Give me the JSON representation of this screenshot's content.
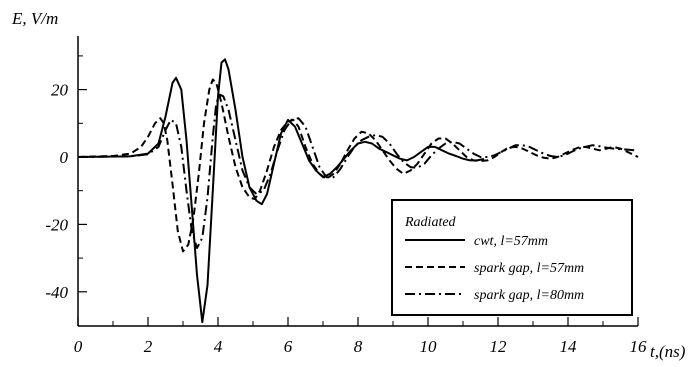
{
  "chart_data": {
    "type": "line",
    "title": "",
    "ylabel": "E, V/m",
    "xlabel": "t,(ns)",
    "xlim": [
      0,
      16
    ],
    "ylim": [
      -50,
      35
    ],
    "x_ticks": [
      0,
      2,
      4,
      6,
      8,
      10,
      12,
      14,
      16
    ],
    "y_ticks": [
      -40,
      -20,
      0,
      20
    ],
    "grid": false,
    "legend": {
      "title": "Radiated",
      "placement": "bottom-right"
    },
    "series": [
      {
        "name": "cwt, l=57mm",
        "style": "solid",
        "color": "#000000",
        "points": [
          [
            0,
            0
          ],
          [
            1.5,
            0.2
          ],
          [
            2.0,
            1.0
          ],
          [
            2.3,
            4
          ],
          [
            2.5,
            12
          ],
          [
            2.7,
            22
          ],
          [
            2.8,
            23.5
          ],
          [
            2.95,
            20
          ],
          [
            3.1,
            5
          ],
          [
            3.25,
            -15
          ],
          [
            3.4,
            -35
          ],
          [
            3.55,
            -49
          ],
          [
            3.7,
            -38
          ],
          [
            3.85,
            -10
          ],
          [
            4.0,
            18
          ],
          [
            4.1,
            28
          ],
          [
            4.2,
            29
          ],
          [
            4.3,
            26
          ],
          [
            4.5,
            14
          ],
          [
            4.7,
            0
          ],
          [
            4.9,
            -9
          ],
          [
            5.1,
            -13
          ],
          [
            5.25,
            -14
          ],
          [
            5.4,
            -11
          ],
          [
            5.6,
            -2
          ],
          [
            5.8,
            7
          ],
          [
            6.0,
            11
          ],
          [
            6.2,
            9
          ],
          [
            6.4,
            4
          ],
          [
            6.6,
            -1
          ],
          [
            6.8,
            -4
          ],
          [
            7.0,
            -6
          ],
          [
            7.2,
            -5
          ],
          [
            7.4,
            -3
          ],
          [
            7.6,
            -0.5
          ],
          [
            7.8,
            2
          ],
          [
            8.0,
            4
          ],
          [
            8.2,
            4.5
          ],
          [
            8.4,
            4
          ],
          [
            8.6,
            2.5
          ],
          [
            8.8,
            1.5
          ],
          [
            9.0,
            0.5
          ],
          [
            9.2,
            -0.5
          ],
          [
            9.4,
            -1
          ],
          [
            9.6,
            0
          ],
          [
            9.8,
            1.5
          ],
          [
            10.0,
            3
          ],
          [
            10.2,
            3
          ],
          [
            10.4,
            2
          ],
          [
            10.6,
            1
          ],
          [
            10.8,
            0.3
          ],
          [
            11.0,
            -0.5
          ],
          [
            11.2,
            -1
          ],
          [
            11.4,
            -1
          ],
          [
            11.6,
            -0.6
          ]
        ]
      },
      {
        "name": "spark gap, l=57mm",
        "style": "dashed",
        "color": "#000000",
        "points": [
          [
            0,
            0
          ],
          [
            1.0,
            0.3
          ],
          [
            1.5,
            1
          ],
          [
            1.8,
            3
          ],
          [
            2.0,
            6
          ],
          [
            2.2,
            10
          ],
          [
            2.35,
            11.5
          ],
          [
            2.45,
            10
          ],
          [
            2.55,
            5
          ],
          [
            2.7,
            -8
          ],
          [
            2.85,
            -22
          ],
          [
            3.0,
            -28
          ],
          [
            3.15,
            -26
          ],
          [
            3.3,
            -18
          ],
          [
            3.45,
            -5
          ],
          [
            3.6,
            10
          ],
          [
            3.75,
            20
          ],
          [
            3.85,
            23
          ],
          [
            3.95,
            22
          ],
          [
            4.1,
            16
          ],
          [
            4.3,
            6
          ],
          [
            4.5,
            -3
          ],
          [
            4.7,
            -9
          ],
          [
            4.9,
            -12
          ],
          [
            5.05,
            -12.5
          ],
          [
            5.2,
            -10
          ],
          [
            5.4,
            -4
          ],
          [
            5.6,
            3
          ],
          [
            5.8,
            8
          ],
          [
            6.0,
            10.5
          ],
          [
            6.15,
            11
          ],
          [
            6.3,
            9
          ],
          [
            6.5,
            3
          ],
          [
            6.7,
            -2
          ],
          [
            6.9,
            -5
          ],
          [
            7.1,
            -6.5
          ],
          [
            7.3,
            -5
          ],
          [
            7.5,
            -2
          ],
          [
            7.7,
            2
          ],
          [
            7.9,
            5.5
          ],
          [
            8.1,
            7.5
          ],
          [
            8.3,
            7
          ],
          [
            8.5,
            5
          ],
          [
            8.7,
            2
          ],
          [
            8.9,
            -1
          ],
          [
            9.1,
            -3.5
          ],
          [
            9.3,
            -5
          ],
          [
            9.5,
            -4
          ],
          [
            9.7,
            -2
          ],
          [
            9.9,
            1
          ],
          [
            10.1,
            4
          ],
          [
            10.3,
            5.5
          ],
          [
            10.5,
            5.5
          ],
          [
            10.7,
            4
          ],
          [
            10.9,
            2
          ],
          [
            11.1,
            0
          ],
          [
            11.3,
            -1
          ],
          [
            11.5,
            -1.2
          ],
          [
            11.7,
            -1
          ],
          [
            11.9,
            0
          ],
          [
            12.1,
            1.5
          ],
          [
            12.3,
            2.8
          ],
          [
            12.5,
            3
          ],
          [
            12.7,
            2.5
          ],
          [
            12.9,
            1.5
          ],
          [
            13.1,
            0.5
          ],
          [
            13.3,
            -0.2
          ],
          [
            13.5,
            -0.5
          ],
          [
            13.7,
            0
          ],
          [
            13.9,
            1
          ],
          [
            14.1,
            2
          ],
          [
            14.3,
            2.8
          ],
          [
            14.5,
            3
          ],
          [
            14.7,
            2.5
          ],
          [
            14.9,
            2
          ],
          [
            15.1,
            2.5
          ],
          [
            15.3,
            3
          ],
          [
            15.5,
            2.5
          ],
          [
            15.7,
            1.5
          ],
          [
            15.9,
            0.5
          ],
          [
            16.0,
            0
          ]
        ]
      },
      {
        "name": "spark gap, l=80mm",
        "style": "dash-dot",
        "color": "#000000",
        "points": [
          [
            0,
            0
          ],
          [
            1.5,
            0.2
          ],
          [
            2.0,
            0.8
          ],
          [
            2.3,
            3
          ],
          [
            2.5,
            8
          ],
          [
            2.65,
            11
          ],
          [
            2.8,
            10
          ],
          [
            2.95,
            3
          ],
          [
            3.1,
            -10
          ],
          [
            3.25,
            -22
          ],
          [
            3.4,
            -27
          ],
          [
            3.55,
            -24
          ],
          [
            3.7,
            -12
          ],
          [
            3.85,
            6
          ],
          [
            3.95,
            16
          ],
          [
            4.05,
            18.5
          ],
          [
            4.15,
            18
          ],
          [
            4.3,
            14
          ],
          [
            4.5,
            5
          ],
          [
            4.7,
            -4
          ],
          [
            4.9,
            -9
          ],
          [
            5.1,
            -11
          ],
          [
            5.3,
            -10
          ],
          [
            5.5,
            -5
          ],
          [
            5.7,
            2
          ],
          [
            5.9,
            8
          ],
          [
            6.1,
            11
          ],
          [
            6.3,
            11.5
          ],
          [
            6.5,
            9
          ],
          [
            6.7,
            3
          ],
          [
            6.9,
            -3
          ],
          [
            7.1,
            -6
          ],
          [
            7.3,
            -6
          ],
          [
            7.5,
            -3.5
          ],
          [
            7.7,
            0
          ],
          [
            7.9,
            3
          ],
          [
            8.1,
            5
          ],
          [
            8.3,
            6
          ],
          [
            8.5,
            6.5
          ],
          [
            8.7,
            6
          ],
          [
            8.9,
            4
          ],
          [
            9.1,
            1
          ],
          [
            9.3,
            -1.5
          ],
          [
            9.5,
            -3
          ],
          [
            9.7,
            -3.2
          ],
          [
            9.9,
            -2
          ],
          [
            10.1,
            0.5
          ],
          [
            10.3,
            2.5
          ],
          [
            10.5,
            4
          ],
          [
            10.7,
            4.5
          ],
          [
            10.9,
            4
          ],
          [
            11.1,
            2.5
          ],
          [
            11.3,
            1
          ],
          [
            11.5,
            0
          ],
          [
            11.7,
            0
          ],
          [
            11.9,
            0.5
          ],
          [
            12.1,
            1.5
          ],
          [
            12.3,
            2.5
          ],
          [
            12.5,
            3.5
          ],
          [
            12.7,
            3.5
          ],
          [
            12.9,
            3
          ],
          [
            13.1,
            2
          ],
          [
            13.3,
            1
          ],
          [
            13.5,
            0.3
          ],
          [
            13.7,
            0
          ],
          [
            13.9,
            0.5
          ],
          [
            14.1,
            1.5
          ],
          [
            14.3,
            2.5
          ],
          [
            14.5,
            3
          ],
          [
            14.7,
            3.5
          ],
          [
            14.9,
            3.2
          ],
          [
            15.1,
            2.8
          ],
          [
            15.3,
            2.5
          ],
          [
            15.5,
            2.3
          ],
          [
            15.7,
            2.2
          ],
          [
            15.9,
            2
          ],
          [
            16.0,
            2
          ]
        ]
      }
    ]
  }
}
